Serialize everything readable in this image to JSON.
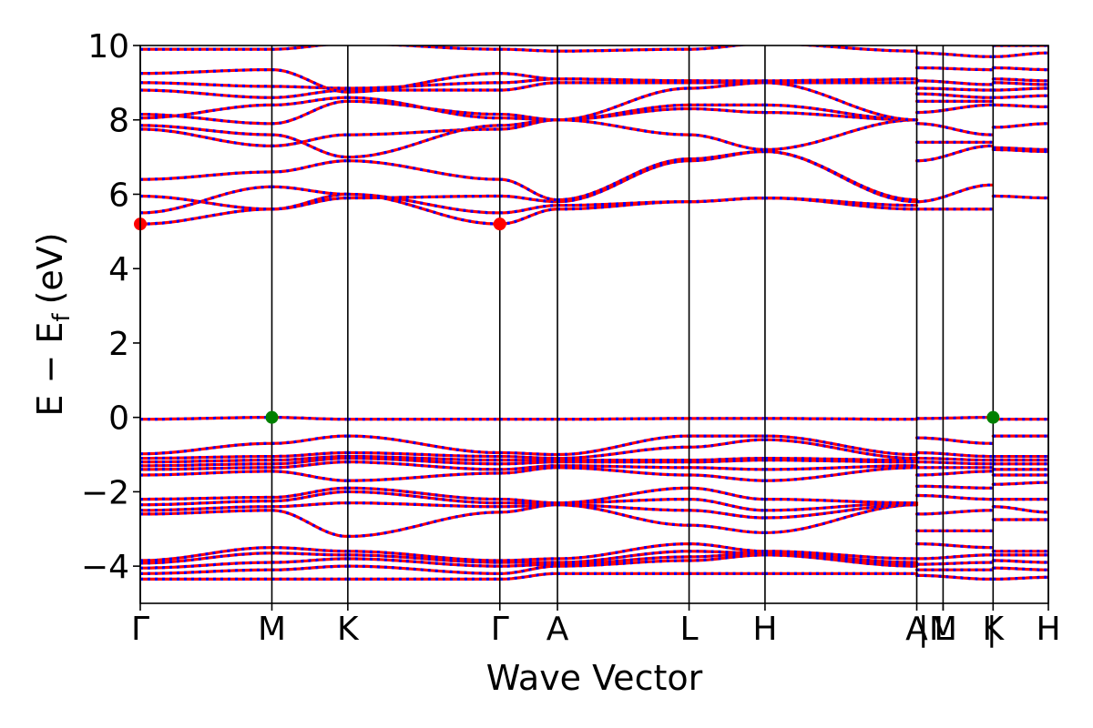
{
  "chart_data": {
    "type": "line",
    "title": "",
    "xlabel": "Wave Vector",
    "ylabel_main": "E − E",
    "ylabel_sub": "f",
    "ylabel_unit": "(eV)",
    "ylim": [
      -5,
      10
    ],
    "yticks": [
      -4,
      -2,
      0,
      2,
      4,
      6,
      8,
      10
    ],
    "ytick_labels": [
      "−4",
      "−2",
      "0",
      "2",
      "4",
      "6",
      "8",
      "10"
    ],
    "kpoints": [
      {
        "label": "Γ",
        "x": 0.0
      },
      {
        "label": "M",
        "x": 1.0
      },
      {
        "label": "K",
        "x": 1.577
      },
      {
        "label": "Γ",
        "x": 2.732
      },
      {
        "label": "A",
        "x": 3.17
      },
      {
        "label": "L",
        "x": 4.17
      },
      {
        "label": "H",
        "x": 4.747
      },
      {
        "label": "A",
        "x": 5.9
      },
      {
        "label": "|",
        "x": 5.95
      },
      {
        "label": "L",
        "x": 6.1
      },
      {
        "label": "M",
        "x": 6.1
      },
      {
        "label": "|",
        "x": 6.47
      },
      {
        "label": "K",
        "x": 6.48
      },
      {
        "label": "H",
        "x": 6.9
      }
    ],
    "xlim": [
      0,
      6.9
    ],
    "series": [
      {
        "name": "",
        "color": "#ff0000",
        "style": "solid"
      },
      {
        "name": "",
        "color": "#0000ff",
        "style": "dotted"
      }
    ],
    "markers": [
      {
        "kind": "CBM",
        "x": 0.0,
        "y": 5.2,
        "color": "#ff0000"
      },
      {
        "kind": "CBM",
        "x": 2.732,
        "y": 5.2,
        "color": "#ff0000"
      },
      {
        "kind": "VBM",
        "x": 1.0,
        "y": 0.0,
        "color": "#008000"
      },
      {
        "kind": "VBM",
        "x": 6.48,
        "y": 0.0,
        "color": "#008000"
      }
    ],
    "segments": [
      {
        "from": "Γ",
        "to": "M",
        "x": [
          0.0,
          1.0
        ],
        "bands": [
          [
            -4.35,
            -4.35
          ],
          [
            -4.2,
            -4.1
          ],
          [
            -4.05,
            -3.9
          ],
          [
            -3.92,
            -3.65
          ],
          [
            -3.85,
            -3.5
          ],
          [
            -2.6,
            -2.5
          ],
          [
            -2.5,
            -2.4
          ],
          [
            -2.35,
            -2.25
          ],
          [
            -2.2,
            -2.15
          ],
          [
            -1.55,
            -1.45
          ],
          [
            -1.4,
            -1.35
          ],
          [
            -1.3,
            -1.25
          ],
          [
            -1.2,
            -1.15
          ],
          [
            -1.1,
            -1.05
          ],
          [
            -0.98,
            -0.7
          ],
          [
            -0.05,
            0.0
          ],
          [
            5.2,
            5.6
          ],
          [
            5.5,
            6.2
          ],
          [
            5.95,
            5.6
          ],
          [
            6.4,
            6.6
          ],
          [
            7.75,
            7.3
          ],
          [
            7.85,
            7.6
          ],
          [
            8.05,
            8.4
          ],
          [
            8.15,
            7.9
          ],
          [
            8.8,
            8.6
          ],
          [
            9.0,
            8.9
          ],
          [
            9.25,
            9.35
          ],
          [
            9.9,
            9.9
          ]
        ]
      },
      {
        "from": "M",
        "to": "K",
        "x": [
          1.0,
          1.577
        ],
        "bands": [
          [
            -4.35,
            -4.35
          ],
          [
            -4.1,
            -4.0
          ],
          [
            -3.9,
            -3.8
          ],
          [
            -3.65,
            -3.7
          ],
          [
            -3.5,
            -3.6
          ],
          [
            -2.5,
            -3.2
          ],
          [
            -2.4,
            -2.3
          ],
          [
            -2.25,
            -2.0
          ],
          [
            -2.15,
            -1.9
          ],
          [
            -1.45,
            -1.7
          ],
          [
            -1.35,
            -1.2
          ],
          [
            -1.25,
            -1.1
          ],
          [
            -1.15,
            -1.05
          ],
          [
            -1.05,
            -0.95
          ],
          [
            -0.7,
            -0.5
          ],
          [
            0.0,
            -0.05
          ],
          [
            5.6,
            6.0
          ],
          [
            6.2,
            6.0
          ],
          [
            5.6,
            5.9
          ],
          [
            6.6,
            6.9
          ],
          [
            7.3,
            7.6
          ],
          [
            7.6,
            7.0
          ],
          [
            8.4,
            8.6
          ],
          [
            7.9,
            8.5
          ],
          [
            8.6,
            8.8
          ],
          [
            8.9,
            8.85
          ],
          [
            9.35,
            8.75
          ],
          [
            9.9,
            10.05
          ]
        ]
      },
      {
        "from": "K",
        "to": "Γ",
        "x": [
          1.577,
          2.732
        ],
        "bands": [
          [
            -4.35,
            -4.35
          ],
          [
            -4.0,
            -4.2
          ],
          [
            -3.8,
            -4.0
          ],
          [
            -3.7,
            -3.9
          ],
          [
            -3.6,
            -3.85
          ],
          [
            -3.2,
            -2.55
          ],
          [
            -2.3,
            -2.4
          ],
          [
            -2.0,
            -2.3
          ],
          [
            -1.9,
            -2.2
          ],
          [
            -1.7,
            -1.5
          ],
          [
            -1.2,
            -1.4
          ],
          [
            -1.1,
            -1.25
          ],
          [
            -1.05,
            -1.15
          ],
          [
            -0.95,
            -1.05
          ],
          [
            -0.5,
            -0.95
          ],
          [
            -0.05,
            -0.05
          ],
          [
            6.0,
            5.2
          ],
          [
            6.0,
            5.5
          ],
          [
            5.9,
            5.95
          ],
          [
            6.9,
            6.4
          ],
          [
            7.6,
            7.75
          ],
          [
            7.0,
            7.85
          ],
          [
            8.6,
            8.05
          ],
          [
            8.5,
            8.15
          ],
          [
            8.8,
            8.8
          ],
          [
            8.85,
            9.0
          ],
          [
            8.75,
            9.25
          ],
          [
            10.05,
            9.9
          ]
        ]
      },
      {
        "from": "Γ",
        "to": "A",
        "x": [
          2.732,
          3.17
        ],
        "bands": [
          [
            -4.35,
            -4.2
          ],
          [
            -4.2,
            -4.0
          ],
          [
            -4.0,
            -3.95
          ],
          [
            -3.9,
            -3.9
          ],
          [
            -3.85,
            -3.8
          ],
          [
            -2.55,
            -2.35
          ],
          [
            -2.4,
            -2.35
          ],
          [
            -2.3,
            -2.3
          ],
          [
            -2.2,
            -2.3
          ],
          [
            -1.5,
            -1.35
          ],
          [
            -1.4,
            -1.3
          ],
          [
            -1.25,
            -1.2
          ],
          [
            -1.15,
            -1.15
          ],
          [
            -1.05,
            -1.1
          ],
          [
            -0.95,
            -1.0
          ],
          [
            -0.05,
            -0.05
          ],
          [
            5.2,
            5.6
          ],
          [
            5.5,
            5.7
          ],
          [
            5.95,
            5.8
          ],
          [
            6.4,
            5.85
          ],
          [
            7.75,
            8.0
          ],
          [
            7.85,
            8.0
          ],
          [
            8.05,
            8.0
          ],
          [
            8.15,
            8.0
          ],
          [
            8.8,
            9.0
          ],
          [
            9.0,
            9.1
          ],
          [
            9.25,
            9.1
          ],
          [
            9.9,
            9.85
          ]
        ]
      },
      {
        "from": "A",
        "to": "L",
        "x": [
          3.17,
          4.17
        ],
        "bands": [
          [
            -4.2,
            -4.2
          ],
          [
            -4.0,
            -3.85
          ],
          [
            -3.95,
            -3.75
          ],
          [
            -3.9,
            -3.6
          ],
          [
            -3.8,
            -3.4
          ],
          [
            -2.35,
            -2.9
          ],
          [
            -2.35,
            -2.5
          ],
          [
            -2.3,
            -2.2
          ],
          [
            -2.3,
            -1.9
          ],
          [
            -1.35,
            -1.55
          ],
          [
            -1.3,
            -1.35
          ],
          [
            -1.2,
            -1.2
          ],
          [
            -1.15,
            -1.15
          ],
          [
            -1.1,
            -0.8
          ],
          [
            -1.0,
            -0.5
          ],
          [
            -0.05,
            -0.03
          ],
          [
            5.6,
            5.8
          ],
          [
            5.7,
            5.8
          ],
          [
            5.8,
            6.9
          ],
          [
            5.85,
            6.95
          ],
          [
            8.0,
            8.3
          ],
          [
            8.0,
            7.6
          ],
          [
            8.0,
            8.4
          ],
          [
            8.0,
            8.85
          ],
          [
            9.0,
            9.0
          ],
          [
            9.1,
            9.05
          ],
          [
            9.1,
            9.05
          ],
          [
            9.85,
            9.9
          ]
        ]
      },
      {
        "from": "L",
        "to": "H",
        "x": [
          4.17,
          4.747
        ],
        "bands": [
          [
            -4.2,
            -4.2
          ],
          [
            -3.85,
            -3.7
          ],
          [
            -3.75,
            -3.65
          ],
          [
            -3.6,
            -3.65
          ],
          [
            -3.4,
            -3.6
          ],
          [
            -2.9,
            -3.1
          ],
          [
            -2.5,
            -2.7
          ],
          [
            -2.2,
            -2.5
          ],
          [
            -1.9,
            -2.2
          ],
          [
            -1.55,
            -1.7
          ],
          [
            -1.35,
            -1.4
          ],
          [
            -1.2,
            -1.15
          ],
          [
            -1.15,
            -1.1
          ],
          [
            -0.8,
            -0.6
          ],
          [
            -0.5,
            -0.5
          ],
          [
            -0.03,
            -0.03
          ],
          [
            5.8,
            5.9
          ],
          [
            5.8,
            5.9
          ],
          [
            6.9,
            7.15
          ],
          [
            6.95,
            7.15
          ],
          [
            8.3,
            8.2
          ],
          [
            7.6,
            7.2
          ],
          [
            8.4,
            8.4
          ],
          [
            8.85,
            9.0
          ],
          [
            9.0,
            9.0
          ],
          [
            9.05,
            9.0
          ],
          [
            9.05,
            9.05
          ],
          [
            9.9,
            10.05
          ]
        ]
      },
      {
        "from": "H",
        "to": "A",
        "x": [
          4.747,
          5.9
        ],
        "bands": [
          [
            -4.2,
            -4.2
          ],
          [
            -3.7,
            -4.0
          ],
          [
            -3.65,
            -3.95
          ],
          [
            -3.65,
            -3.9
          ],
          [
            -3.6,
            -3.8
          ],
          [
            -3.1,
            -2.35
          ],
          [
            -2.7,
            -2.35
          ],
          [
            -2.5,
            -2.3
          ],
          [
            -2.2,
            -2.3
          ],
          [
            -1.7,
            -1.35
          ],
          [
            -1.4,
            -1.3
          ],
          [
            -1.15,
            -1.2
          ],
          [
            -1.1,
            -1.15
          ],
          [
            -0.6,
            -1.1
          ],
          [
            -0.5,
            -1.0
          ],
          [
            -0.03,
            -0.05
          ],
          [
            5.9,
            5.6
          ],
          [
            5.9,
            5.7
          ],
          [
            7.15,
            5.8
          ],
          [
            7.15,
            5.85
          ],
          [
            8.2,
            8.0
          ],
          [
            7.2,
            8.0
          ],
          [
            8.4,
            8.0
          ],
          [
            9.0,
            8.0
          ],
          [
            9.0,
            9.0
          ],
          [
            9.0,
            9.1
          ],
          [
            9.05,
            9.1
          ],
          [
            10.05,
            9.85
          ]
        ]
      },
      {
        "from": "L",
        "to": "M",
        "x": [
          5.9,
          6.47
        ],
        "bands": [
          [
            -4.25,
            -4.35
          ],
          [
            -4.1,
            -4.1
          ],
          [
            -3.95,
            -3.9
          ],
          [
            -3.8,
            -3.7
          ],
          [
            -3.4,
            -3.5
          ],
          [
            -3.05,
            -3.05
          ],
          [
            -2.6,
            -2.5
          ],
          [
            -2.1,
            -2.2
          ],
          [
            -1.85,
            -1.9
          ],
          [
            -1.55,
            -1.45
          ],
          [
            -1.35,
            -1.35
          ],
          [
            -1.2,
            -1.25
          ],
          [
            -1.1,
            -1.15
          ],
          [
            -0.95,
            -1.05
          ],
          [
            -0.55,
            -0.7
          ],
          [
            -0.03,
            0.0
          ],
          [
            5.6,
            5.6
          ],
          [
            5.8,
            6.25
          ],
          [
            6.9,
            7.3
          ],
          [
            7.4,
            7.4
          ],
          [
            7.9,
            7.6
          ],
          [
            8.2,
            8.4
          ],
          [
            8.5,
            8.5
          ],
          [
            8.7,
            8.6
          ],
          [
            8.85,
            8.8
          ],
          [
            9.05,
            8.95
          ],
          [
            9.4,
            9.35
          ],
          [
            9.8,
            9.7
          ]
        ]
      },
      {
        "from": "K",
        "to": "H",
        "x": [
          6.48,
          6.9
        ],
        "bands": [
          [
            -4.35,
            -4.3
          ],
          [
            -4.05,
            -4.1
          ],
          [
            -3.85,
            -3.9
          ],
          [
            -3.7,
            -3.7
          ],
          [
            -3.6,
            -3.6
          ],
          [
            -2.75,
            -2.75
          ],
          [
            -2.4,
            -2.55
          ],
          [
            -2.2,
            -2.2
          ],
          [
            -1.8,
            -1.75
          ],
          [
            -1.55,
            -1.55
          ],
          [
            -1.4,
            -1.4
          ],
          [
            -1.25,
            -1.25
          ],
          [
            -1.15,
            -1.15
          ],
          [
            -1.05,
            -1.05
          ],
          [
            -0.5,
            -0.5
          ],
          [
            -0.05,
            -0.05
          ],
          [
            5.95,
            5.9
          ],
          [
            7.2,
            7.15
          ],
          [
            7.25,
            7.2
          ],
          [
            7.8,
            7.9
          ],
          [
            8.4,
            8.35
          ],
          [
            8.6,
            8.65
          ],
          [
            8.8,
            8.85
          ],
          [
            9.0,
            8.95
          ],
          [
            9.1,
            9.05
          ],
          [
            9.4,
            9.35
          ],
          [
            9.7,
            9.8
          ],
          [
            10.0,
            10.0
          ]
        ]
      }
    ]
  }
}
